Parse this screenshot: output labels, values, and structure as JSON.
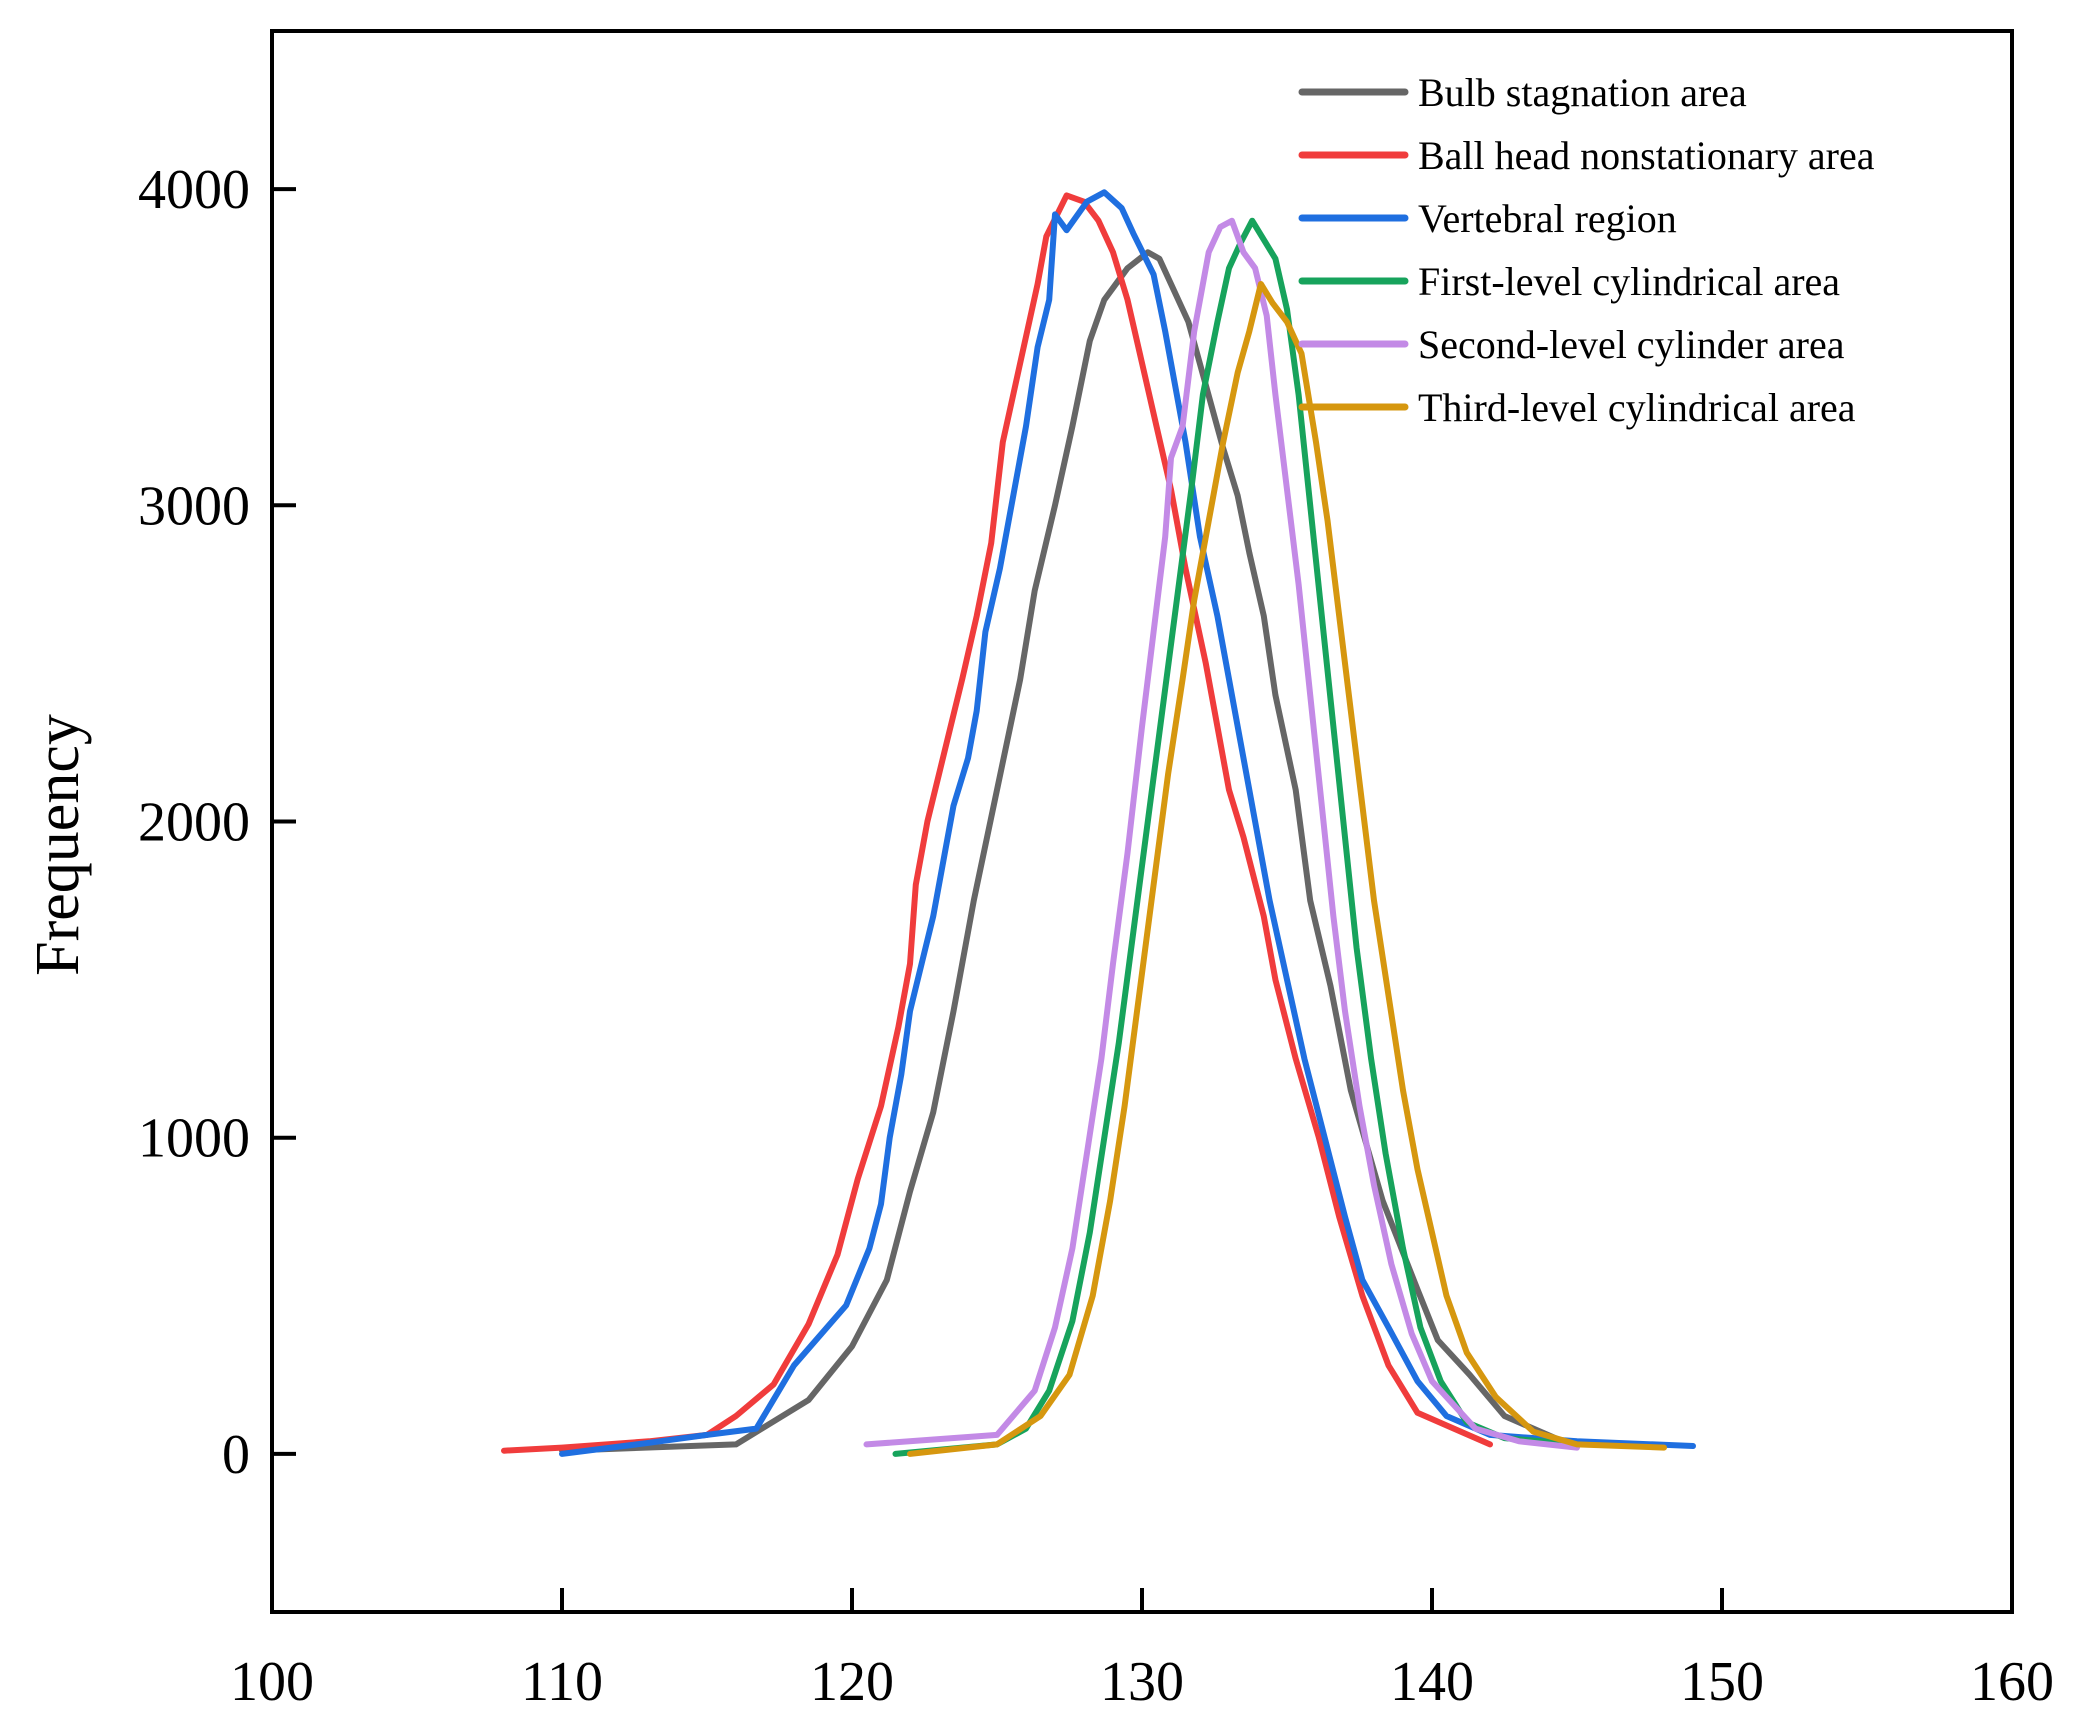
{
  "chart_data": {
    "type": "line",
    "title": "",
    "xlabel": "",
    "ylabel": "Frequency",
    "xlim": [
      100,
      160
    ],
    "ylim": [
      -500,
      4500
    ],
    "xticks": [
      100,
      110,
      120,
      130,
      140,
      150,
      160
    ],
    "yticks": [
      0,
      1000,
      2000,
      3000,
      4000
    ],
    "grid": false,
    "legend_position": "top-right",
    "series": [
      {
        "name": "Bulb stagnation area",
        "color": "#666666",
        "points": [
          [
            110,
            10
          ],
          [
            116,
            30
          ],
          [
            118.5,
            170
          ],
          [
            120,
            340
          ],
          [
            121.2,
            550
          ],
          [
            122,
            830
          ],
          [
            122.8,
            1080
          ],
          [
            123.5,
            1400
          ],
          [
            124.2,
            1750
          ],
          [
            125,
            2100
          ],
          [
            125.8,
            2450
          ],
          [
            126.3,
            2730
          ],
          [
            127,
            3000
          ],
          [
            127.6,
            3250
          ],
          [
            128.2,
            3520
          ],
          [
            128.7,
            3650
          ],
          [
            129.5,
            3750
          ],
          [
            130.2,
            3800
          ],
          [
            130.6,
            3780
          ],
          [
            131,
            3700
          ],
          [
            131.6,
            3580
          ],
          [
            132.2,
            3380
          ],
          [
            132.8,
            3180
          ],
          [
            133.3,
            3030
          ],
          [
            133.7,
            2850
          ],
          [
            134.2,
            2650
          ],
          [
            134.6,
            2400
          ],
          [
            135.3,
            2100
          ],
          [
            135.8,
            1750
          ],
          [
            136.5,
            1480
          ],
          [
            137.2,
            1150
          ],
          [
            138.3,
            800
          ],
          [
            139.5,
            520
          ],
          [
            140.2,
            360
          ],
          [
            141.3,
            250
          ],
          [
            142.5,
            120
          ],
          [
            144.5,
            40
          ]
        ]
      },
      {
        "name": "Ball head nonstationary area",
        "color": "#f03c3c",
        "points": [
          [
            108,
            10
          ],
          [
            110,
            20
          ],
          [
            113,
            40
          ],
          [
            115,
            60
          ],
          [
            116,
            120
          ],
          [
            117.3,
            220
          ],
          [
            118.5,
            410
          ],
          [
            119.5,
            630
          ],
          [
            120.2,
            870
          ],
          [
            121,
            1100
          ],
          [
            121.6,
            1350
          ],
          [
            122,
            1550
          ],
          [
            122.2,
            1800
          ],
          [
            122.6,
            2000
          ],
          [
            123,
            2150
          ],
          [
            123.4,
            2300
          ],
          [
            123.8,
            2450
          ],
          [
            124.3,
            2650
          ],
          [
            124.8,
            2880
          ],
          [
            125.2,
            3200
          ],
          [
            125.8,
            3450
          ],
          [
            126.4,
            3700
          ],
          [
            126.7,
            3850
          ],
          [
            127.4,
            3980
          ],
          [
            128,
            3960
          ],
          [
            128.5,
            3900
          ],
          [
            129,
            3800
          ],
          [
            129.5,
            3650
          ],
          [
            130,
            3450
          ],
          [
            130.5,
            3250
          ],
          [
            131,
            3050
          ],
          [
            131.5,
            2800
          ],
          [
            132.2,
            2500
          ],
          [
            132.6,
            2300
          ],
          [
            133,
            2100
          ],
          [
            133.5,
            1950
          ],
          [
            134.2,
            1700
          ],
          [
            134.6,
            1500
          ],
          [
            135.3,
            1250
          ],
          [
            136.1,
            1000
          ],
          [
            136.8,
            750
          ],
          [
            137.6,
            500
          ],
          [
            138.5,
            280
          ],
          [
            139.5,
            130
          ],
          [
            141,
            70
          ],
          [
            142,
            30
          ]
        ]
      },
      {
        "name": "Vertebral region",
        "color": "#1f6fe0",
        "points": [
          [
            110,
            0
          ],
          [
            113,
            35
          ],
          [
            115,
            60
          ],
          [
            116.7,
            80
          ],
          [
            118,
            280
          ],
          [
            119.8,
            470
          ],
          [
            120.6,
            650
          ],
          [
            121,
            790
          ],
          [
            121.3,
            1000
          ],
          [
            121.7,
            1200
          ],
          [
            122,
            1400
          ],
          [
            122.4,
            1550
          ],
          [
            122.8,
            1700
          ],
          [
            123.2,
            1900
          ],
          [
            123.5,
            2050
          ],
          [
            124,
            2200
          ],
          [
            124.3,
            2350
          ],
          [
            124.6,
            2600
          ],
          [
            125.1,
            2800
          ],
          [
            125.5,
            3000
          ],
          [
            126,
            3250
          ],
          [
            126.4,
            3500
          ],
          [
            126.8,
            3650
          ],
          [
            127,
            3920
          ],
          [
            127.4,
            3870
          ],
          [
            128.1,
            3960
          ],
          [
            128.7,
            3990
          ],
          [
            129.3,
            3940
          ],
          [
            129.7,
            3860
          ],
          [
            130.4,
            3730
          ],
          [
            130.8,
            3550
          ],
          [
            131.2,
            3350
          ],
          [
            131.5,
            3200
          ],
          [
            132,
            2900
          ],
          [
            132.6,
            2650
          ],
          [
            133,
            2450
          ],
          [
            133.4,
            2250
          ],
          [
            133.9,
            2000
          ],
          [
            134.4,
            1750
          ],
          [
            135,
            1500
          ],
          [
            135.6,
            1250
          ],
          [
            136.3,
            1000
          ],
          [
            137,
            750
          ],
          [
            137.6,
            550
          ],
          [
            138.5,
            400
          ],
          [
            139.5,
            230
          ],
          [
            140.5,
            120
          ],
          [
            142,
            60
          ],
          [
            145,
            40
          ],
          [
            149,
            25
          ]
        ]
      },
      {
        "name": "First-level cylindrical area",
        "color": "#17a35c",
        "points": [
          [
            121.5,
            0
          ],
          [
            125,
            30
          ],
          [
            126,
            80
          ],
          [
            126.8,
            200
          ],
          [
            127.6,
            420
          ],
          [
            128.2,
            700
          ],
          [
            128.7,
            1000
          ],
          [
            129.2,
            1300
          ],
          [
            129.7,
            1650
          ],
          [
            130.2,
            2000
          ],
          [
            130.7,
            2350
          ],
          [
            131.2,
            2700
          ],
          [
            131.7,
            3050
          ],
          [
            132.1,
            3350
          ],
          [
            132.6,
            3580
          ],
          [
            133,
            3750
          ],
          [
            133.4,
            3830
          ],
          [
            133.8,
            3900
          ],
          [
            134.2,
            3840
          ],
          [
            134.6,
            3780
          ],
          [
            135,
            3620
          ],
          [
            135.4,
            3350
          ],
          [
            135.8,
            3000
          ],
          [
            136.2,
            2650
          ],
          [
            136.6,
            2300
          ],
          [
            137,
            1950
          ],
          [
            137.4,
            1600
          ],
          [
            137.9,
            1250
          ],
          [
            138.4,
            950
          ],
          [
            139,
            650
          ],
          [
            139.6,
            400
          ],
          [
            140.3,
            230
          ],
          [
            141.2,
            100
          ],
          [
            142.5,
            50
          ],
          [
            145,
            30
          ]
        ]
      },
      {
        "name": "Second-level cylinder area",
        "color": "#c38ae6",
        "points": [
          [
            120.5,
            30
          ],
          [
            125,
            60
          ],
          [
            126.3,
            200
          ],
          [
            127,
            400
          ],
          [
            127.6,
            650
          ],
          [
            128.1,
            950
          ],
          [
            128.6,
            1250
          ],
          [
            129,
            1550
          ],
          [
            129.5,
            1900
          ],
          [
            130,
            2300
          ],
          [
            130.4,
            2600
          ],
          [
            130.8,
            2900
          ],
          [
            131,
            3150
          ],
          [
            131.4,
            3250
          ],
          [
            131.8,
            3550
          ],
          [
            132.3,
            3800
          ],
          [
            132.7,
            3880
          ],
          [
            133.1,
            3900
          ],
          [
            133.5,
            3800
          ],
          [
            133.9,
            3750
          ],
          [
            134.3,
            3600
          ],
          [
            134.6,
            3350
          ],
          [
            135,
            3050
          ],
          [
            135.4,
            2750
          ],
          [
            135.8,
            2400
          ],
          [
            136.2,
            2050
          ],
          [
            136.6,
            1700
          ],
          [
            137,
            1400
          ],
          [
            137.5,
            1100
          ],
          [
            138,
            850
          ],
          [
            138.6,
            600
          ],
          [
            139.3,
            380
          ],
          [
            140,
            230
          ],
          [
            141.5,
            80
          ],
          [
            143,
            40
          ],
          [
            145,
            20
          ]
        ]
      },
      {
        "name": "Third-level cylindrical area",
        "color": "#d6970f",
        "points": [
          [
            122,
            0
          ],
          [
            125,
            30
          ],
          [
            126.5,
            120
          ],
          [
            127.5,
            250
          ],
          [
            128.3,
            500
          ],
          [
            128.9,
            800
          ],
          [
            129.4,
            1100
          ],
          [
            129.9,
            1450
          ],
          [
            130.4,
            1800
          ],
          [
            130.9,
            2150
          ],
          [
            131.4,
            2450
          ],
          [
            131.8,
            2700
          ],
          [
            132.3,
            2950
          ],
          [
            132.8,
            3200
          ],
          [
            133.3,
            3420
          ],
          [
            133.7,
            3550
          ],
          [
            134.1,
            3700
          ],
          [
            134.5,
            3640
          ],
          [
            135,
            3580
          ],
          [
            135.5,
            3480
          ],
          [
            136,
            3200
          ],
          [
            136.4,
            2950
          ],
          [
            136.8,
            2650
          ],
          [
            137.2,
            2350
          ],
          [
            137.6,
            2050
          ],
          [
            138,
            1750
          ],
          [
            138.5,
            1450
          ],
          [
            139,
            1150
          ],
          [
            139.5,
            900
          ],
          [
            140,
            700
          ],
          [
            140.5,
            500
          ],
          [
            141.2,
            320
          ],
          [
            142.2,
            180
          ],
          [
            143.5,
            70
          ],
          [
            145,
            30
          ],
          [
            148,
            20
          ]
        ]
      }
    ]
  }
}
